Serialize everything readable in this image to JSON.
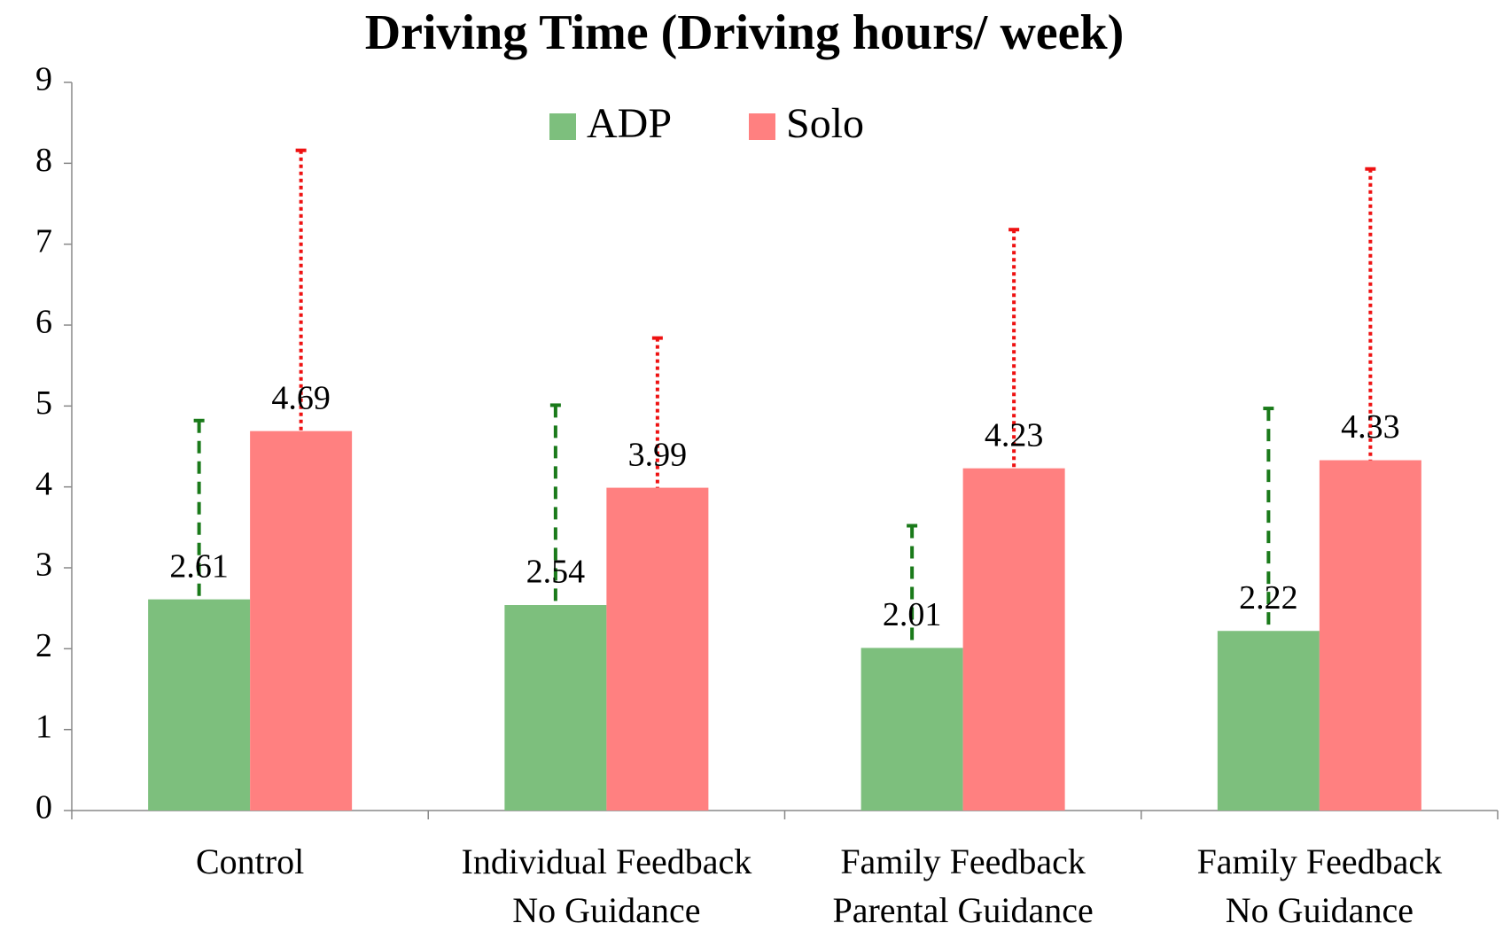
{
  "chart_data": {
    "type": "bar",
    "title": "Driving Time (Driving hours/ week)",
    "categories": [
      [
        "Control"
      ],
      [
        "Individual Feedback",
        "No Guidance"
      ],
      [
        "Family Feedback",
        "Parental Guidance"
      ],
      [
        "Family Feedback",
        "No Guidance"
      ]
    ],
    "series": [
      {
        "name": "ADP",
        "color": "#7dbf7d",
        "error_color": "#1a7a1a",
        "values": [
          2.61,
          2.54,
          2.01,
          2.22
        ],
        "errors": [
          2.21,
          2.47,
          1.51,
          2.75
        ]
      },
      {
        "name": "Solo",
        "color": "#ff8080",
        "error_color": "#ee1111",
        "values": [
          4.69,
          3.99,
          4.23,
          4.33
        ],
        "errors": [
          3.47,
          1.85,
          2.95,
          3.6
        ]
      }
    ],
    "ylim": [
      0,
      9
    ],
    "yticks": [
      0,
      1,
      2,
      3,
      4,
      5,
      6,
      7,
      8,
      9
    ],
    "legend": "top"
  }
}
